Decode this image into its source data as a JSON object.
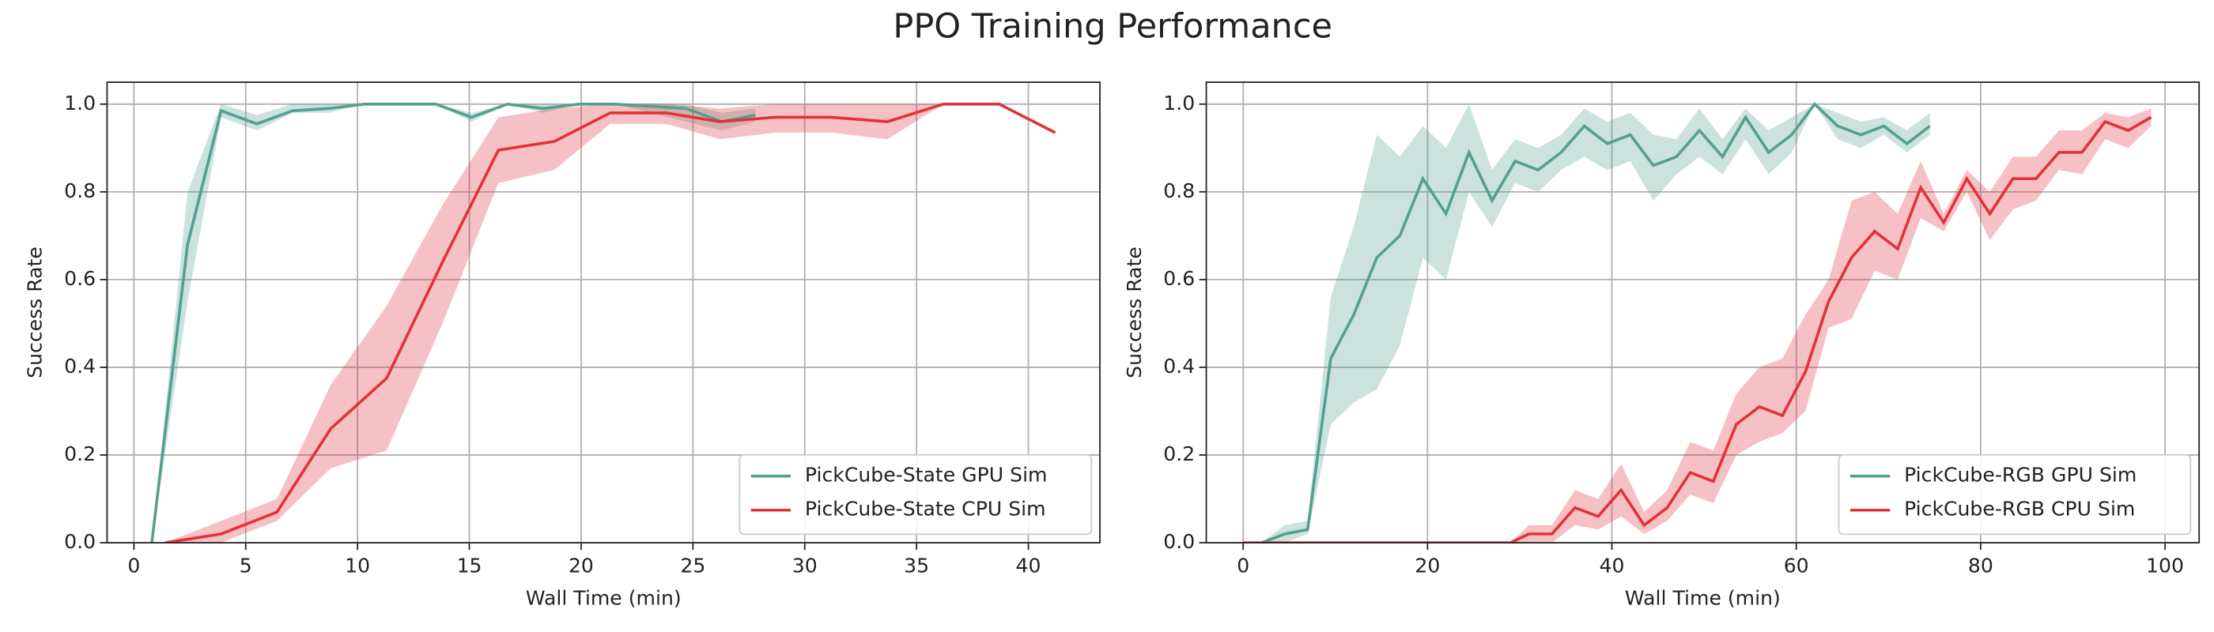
{
  "title": "PPO Training Performance",
  "chart_data": [
    {
      "type": "line",
      "xlabel": "Wall Time (min)",
      "ylabel": "Success Rate",
      "xlim": [
        -1.2,
        43.2
      ],
      "ylim": [
        0,
        1.05
      ],
      "xticks": [
        0,
        5,
        10,
        15,
        20,
        25,
        30,
        35,
        40
      ],
      "yticks": [
        {
          "value": 0,
          "label": "0.0"
        },
        {
          "value": 0.2,
          "label": "0.2"
        },
        {
          "value": 0.4,
          "label": "0.4"
        },
        {
          "value": 0.6,
          "label": "0.6"
        },
        {
          "value": 0.8,
          "label": "0.8"
        },
        {
          "value": 1,
          "label": "1.0"
        }
      ],
      "grid": true,
      "legend": "lower right",
      "series": [
        {
          "name": "PickCube-State GPU Sim",
          "color": "#52a08f",
          "x": [
            0.8,
            2.4,
            3.9,
            5.5,
            7.1,
            8.7,
            10.3,
            11.9,
            13.5,
            15.1,
            16.7,
            18.3,
            19.9,
            21.5,
            23.1,
            24.7,
            26.3,
            27.8
          ],
          "values": [
            0,
            0.68,
            0.985,
            0.955,
            0.985,
            0.99,
            1,
            1,
            1,
            0.97,
            1,
            0.99,
            1,
            1,
            0.995,
            0.99,
            0.96,
            0.975
          ],
          "lower": [
            0,
            0.55,
            0.97,
            0.94,
            0.98,
            0.98,
            1,
            1,
            1,
            0.96,
            1,
            0.98,
            1,
            1,
            0.98,
            0.96,
            0.94,
            0.96
          ],
          "upper": [
            0,
            0.8,
            1,
            0.975,
            1,
            1,
            1,
            1,
            1,
            0.98,
            1,
            1,
            1,
            1,
            1,
            1,
            0.98,
            0.99
          ]
        },
        {
          "name": "PickCube-State CPU Sim",
          "color": "#e2313a",
          "x": [
            1.4,
            3.9,
            6.4,
            8.8,
            11.3,
            13.8,
            16.3,
            18.8,
            21.3,
            23.8,
            26.2,
            28.7,
            31.2,
            33.7,
            36.2,
            38.7,
            41.2
          ],
          "values": [
            0,
            0.02,
            0.07,
            0.26,
            0.375,
            0.64,
            0.895,
            0.915,
            0.98,
            0.98,
            0.96,
            0.97,
            0.97,
            0.96,
            1,
            1,
            0.935
          ],
          "lower": [
            0,
            0,
            0.05,
            0.17,
            0.21,
            0.5,
            0.82,
            0.85,
            0.955,
            0.955,
            0.92,
            0.935,
            0.935,
            0.92,
            1,
            1,
            0.935
          ],
          "upper": [
            0,
            0.05,
            0.1,
            0.36,
            0.54,
            0.77,
            0.97,
            0.99,
            1,
            1,
            0.99,
            1,
            1,
            1,
            1,
            1,
            0.935
          ]
        }
      ]
    },
    {
      "type": "line",
      "xlabel": "Wall Time (min)",
      "ylabel": "Success Rate",
      "xlim": [
        -4,
        103.7
      ],
      "ylim": [
        0,
        1.05
      ],
      "xticks": [
        0,
        20,
        40,
        60,
        80,
        100
      ],
      "yticks": [
        {
          "value": 0,
          "label": "0.0"
        },
        {
          "value": 0.2,
          "label": "0.2"
        },
        {
          "value": 0.4,
          "label": "0.4"
        },
        {
          "value": 0.6,
          "label": "0.6"
        },
        {
          "value": 0.8,
          "label": "0.8"
        },
        {
          "value": 1,
          "label": "1.0"
        }
      ],
      "grid": true,
      "legend": "lower right",
      "series": [
        {
          "name": "PickCube-RGB GPU Sim",
          "color": "#52a08f",
          "x": [
            2,
            4.5,
            7,
            9.5,
            12,
            14.5,
            17,
            19.5,
            22,
            24.5,
            27,
            29.5,
            32,
            34.5,
            37,
            39.5,
            42,
            44.5,
            47,
            49.5,
            52,
            54.5,
            57,
            59.5,
            62,
            64.5,
            67,
            69.5,
            72,
            74.5
          ],
          "values": [
            0,
            0.02,
            0.03,
            0.42,
            0.52,
            0.65,
            0.7,
            0.83,
            0.75,
            0.89,
            0.78,
            0.87,
            0.85,
            0.89,
            0.95,
            0.91,
            0.93,
            0.86,
            0.88,
            0.94,
            0.88,
            0.97,
            0.89,
            0.93,
            1,
            0.95,
            0.93,
            0.95,
            0.91,
            0.95
          ],
          "lower": [
            0,
            0,
            0.02,
            0.27,
            0.32,
            0.35,
            0.45,
            0.65,
            0.6,
            0.8,
            0.72,
            0.82,
            0.8,
            0.85,
            0.88,
            0.85,
            0.87,
            0.78,
            0.84,
            0.88,
            0.84,
            0.92,
            0.84,
            0.89,
            1,
            0.92,
            0.9,
            0.93,
            0.89,
            0.93
          ],
          "upper": [
            0,
            0.04,
            0.05,
            0.56,
            0.72,
            0.93,
            0.88,
            0.95,
            0.9,
            1,
            0.85,
            0.92,
            0.9,
            0.93,
            0.99,
            0.96,
            0.98,
            0.93,
            0.92,
            0.99,
            0.92,
            0.99,
            0.94,
            0.97,
            1,
            0.98,
            0.96,
            0.97,
            0.94,
            0.98
          ]
        },
        {
          "name": "PickCube-RGB CPU Sim",
          "color": "#e2313a",
          "x": [
            0,
            5,
            10,
            15,
            20,
            25,
            29,
            31,
            33.5,
            36,
            38.5,
            41,
            43.5,
            46,
            48.5,
            51,
            53.5,
            56,
            58.5,
            61,
            63.5,
            66,
            68.5,
            71,
            73.5,
            76,
            78.5,
            81,
            83.5,
            86,
            88.5,
            91,
            93.5,
            96,
            98.5
          ],
          "values": [
            0,
            0,
            0,
            0,
            0,
            0,
            0,
            0.02,
            0.02,
            0.08,
            0.06,
            0.12,
            0.04,
            0.08,
            0.16,
            0.14,
            0.27,
            0.31,
            0.29,
            0.39,
            0.55,
            0.65,
            0.71,
            0.67,
            0.81,
            0.73,
            0.83,
            0.75,
            0.83,
            0.83,
            0.89,
            0.89,
            0.96,
            0.94,
            0.97
          ],
          "lower": [
            0,
            0,
            0,
            0,
            0,
            0,
            0,
            0,
            0,
            0.04,
            0.03,
            0.06,
            0.02,
            0.05,
            0.11,
            0.09,
            0.2,
            0.23,
            0.25,
            0.3,
            0.49,
            0.51,
            0.62,
            0.6,
            0.74,
            0.71,
            0.8,
            0.69,
            0.76,
            0.78,
            0.85,
            0.84,
            0.92,
            0.9,
            0.95
          ],
          "upper": [
            0,
            0,
            0,
            0,
            0,
            0,
            0,
            0.04,
            0.04,
            0.12,
            0.1,
            0.18,
            0.07,
            0.12,
            0.23,
            0.21,
            0.34,
            0.4,
            0.42,
            0.52,
            0.6,
            0.78,
            0.8,
            0.75,
            0.87,
            0.75,
            0.85,
            0.8,
            0.88,
            0.88,
            0.94,
            0.94,
            0.98,
            0.97,
            0.99
          ]
        }
      ]
    }
  ]
}
